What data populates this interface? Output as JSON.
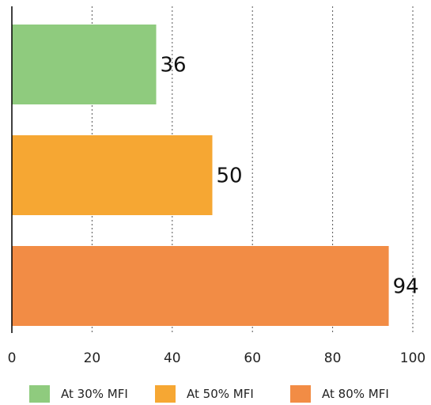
{
  "chart_data": {
    "type": "bar",
    "orientation": "horizontal",
    "title": "",
    "xlabel": "",
    "ylabel": "",
    "xlim": [
      0,
      100
    ],
    "xticks": [
      0,
      20,
      40,
      60,
      80,
      100
    ],
    "grid": "vertical dotted",
    "legend_position": "bottom",
    "series": [
      {
        "name": "At 30% MFI",
        "value": 36,
        "label": "36",
        "color": "#8fcb7e"
      },
      {
        "name": "At 50% MFI",
        "value": 50,
        "label": "50",
        "color": "#f6a733"
      },
      {
        "name": "At 80% MFI",
        "value": 94,
        "label": "94",
        "color": "#f28c45"
      }
    ]
  }
}
